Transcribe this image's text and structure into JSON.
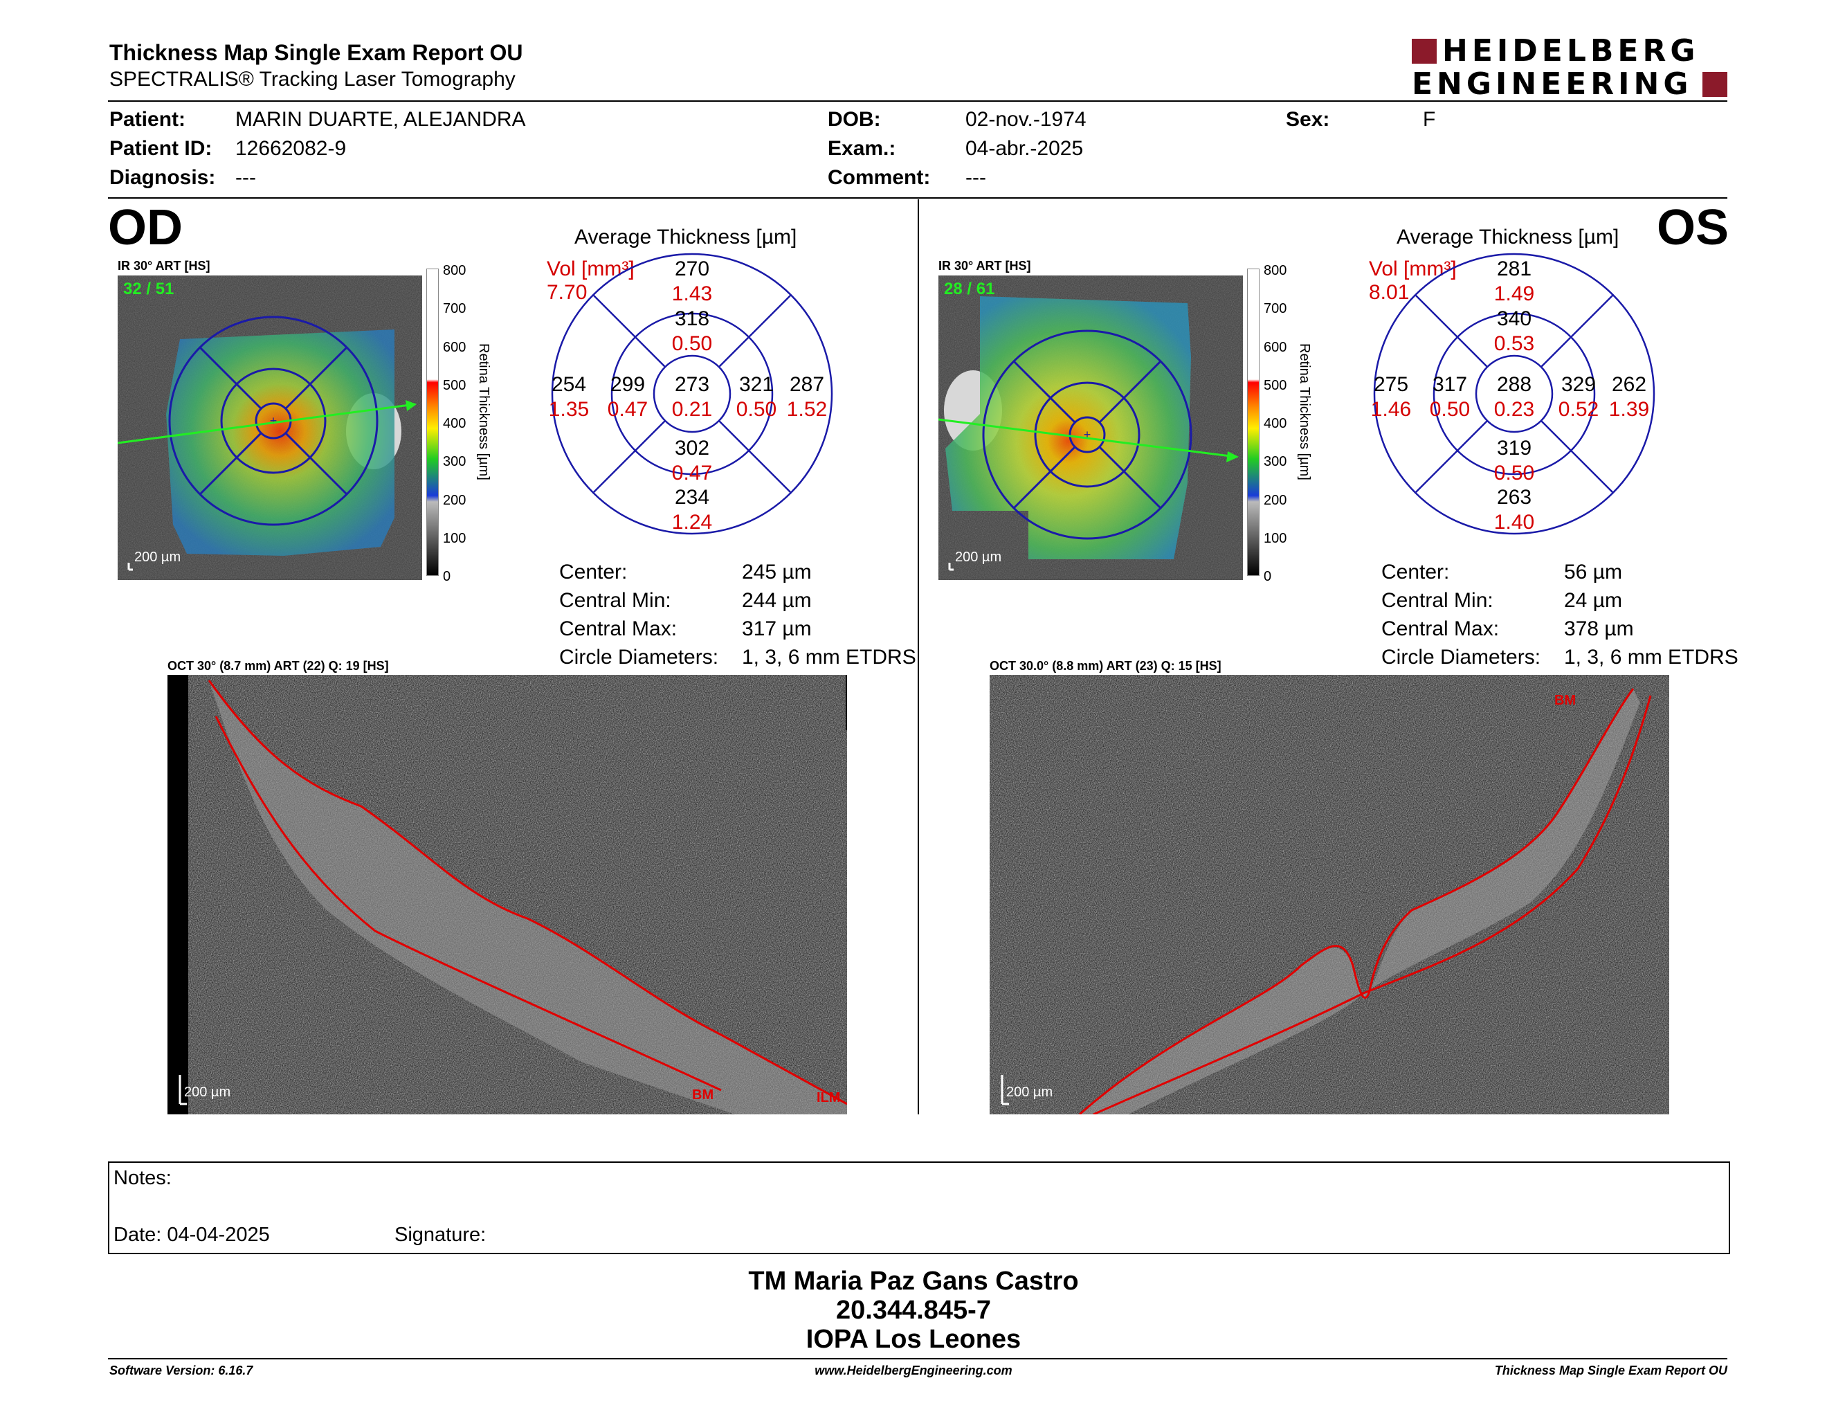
{
  "header": {
    "title": "Thickness Map Single Exam Report OU",
    "subtitle": "SPECTRALIS® Tracking Laser Tomography",
    "logo_line1": "HEIDELBERG",
    "logo_line2": "ENGINEERING"
  },
  "patient": {
    "patient_label": "Patient:",
    "patient_value": "MARIN DUARTE, ALEJANDRA",
    "id_label": "Patient ID:",
    "id_value": "12662082-9",
    "diagnosis_label": "Diagnosis:",
    "diagnosis_value": "---",
    "dob_label": "DOB:",
    "dob_value": "02-nov.-1974",
    "exam_label": "Exam.:",
    "exam_value": "04-abr.-2025",
    "comment_label": "Comment:",
    "comment_value": "---",
    "sex_label": "Sex:",
    "sex_value": "F"
  },
  "colors": {
    "accent_red": "#d40000",
    "ring_blue": "#1a1aa8",
    "logo_red": "#8b1a2a",
    "scan_green": "#22ee22"
  },
  "colorbar": {
    "ticks": [
      "800",
      "700",
      "600",
      "500",
      "400",
      "300",
      "200",
      "100",
      "0"
    ],
    "label": "Retina Thickness [µm]"
  },
  "od": {
    "eye_label": "OD",
    "ir_label": "IR 30° ART [HS]",
    "frame_counter": "32 / 51",
    "scale_bar": "200 µm",
    "avg_title": "Average Thickness [µm]",
    "vol_label": "Vol [mm³]",
    "vol_value": "7.70",
    "etdrs": {
      "center": {
        "t": "273",
        "v": "0.21"
      },
      "inner_sup": {
        "t": "318",
        "v": "0.50"
      },
      "inner_inf": {
        "t": "302",
        "v": "0.47"
      },
      "inner_left": {
        "t": "299",
        "v": "0.47"
      },
      "inner_right": {
        "t": "321",
        "v": "0.50"
      },
      "outer_sup": {
        "t": "270",
        "v": "1.43"
      },
      "outer_inf": {
        "t": "234",
        "v": "1.24"
      },
      "outer_left": {
        "t": "254",
        "v": "1.35"
      },
      "outer_right": {
        "t": "287",
        "v": "1.52"
      }
    },
    "stats": [
      {
        "label": "Center:",
        "value": "245 µm"
      },
      {
        "label": "Central Min:",
        "value": "244 µm"
      },
      {
        "label": "Central Max:",
        "value": "317 µm"
      },
      {
        "label": "Circle Diameters:",
        "value": "1, 3, 6 mm ETDRS"
      }
    ],
    "oct_label": "OCT 30° (8.7 mm) ART (22) Q: 19 [HS]",
    "oct_scale": "200 µm",
    "oct_tag_ilm": "ILM",
    "oct_tag_bm": "BM"
  },
  "os": {
    "eye_label": "OS",
    "ir_label": "IR 30° ART [HS]",
    "frame_counter": "28 / 61",
    "scale_bar": "200 µm",
    "avg_title": "Average Thickness [µm]",
    "vol_label": "Vol [mm³]",
    "vol_value": "8.01",
    "etdrs": {
      "center": {
        "t": "288",
        "v": "0.23"
      },
      "inner_sup": {
        "t": "340",
        "v": "0.53"
      },
      "inner_inf": {
        "t": "319",
        "v": "0.50"
      },
      "inner_left": {
        "t": "317",
        "v": "0.50"
      },
      "inner_right": {
        "t": "329",
        "v": "0.52"
      },
      "outer_sup": {
        "t": "281",
        "v": "1.49"
      },
      "outer_inf": {
        "t": "263",
        "v": "1.40"
      },
      "outer_left": {
        "t": "275",
        "v": "1.46"
      },
      "outer_right": {
        "t": "262",
        "v": "1.39"
      }
    },
    "stats": [
      {
        "label": "Center:",
        "value": "56 µm"
      },
      {
        "label": "Central Min:",
        "value": "24 µm"
      },
      {
        "label": "Central Max:",
        "value": "378 µm"
      },
      {
        "label": "Circle Diameters:",
        "value": "1, 3, 6 mm ETDRS"
      }
    ],
    "oct_label": "OCT 30.0° (8.8 mm) ART (23) Q: 15 [HS]",
    "oct_scale": "200 µm",
    "oct_tag_bm": "BM"
  },
  "notes": {
    "notes_label": "Notes:",
    "date_label": "Date: 04-04-2025",
    "signature_label": "Signature:"
  },
  "signer": {
    "name": "TM Maria Paz Gans Castro",
    "id": "20.344.845-7",
    "org": "IOPA Los Leones"
  },
  "footer": {
    "software": "Software Version: 6.16.7",
    "website": "www.HeidelbergEngineering.com",
    "report": "Thickness Map Single Exam Report OU"
  }
}
